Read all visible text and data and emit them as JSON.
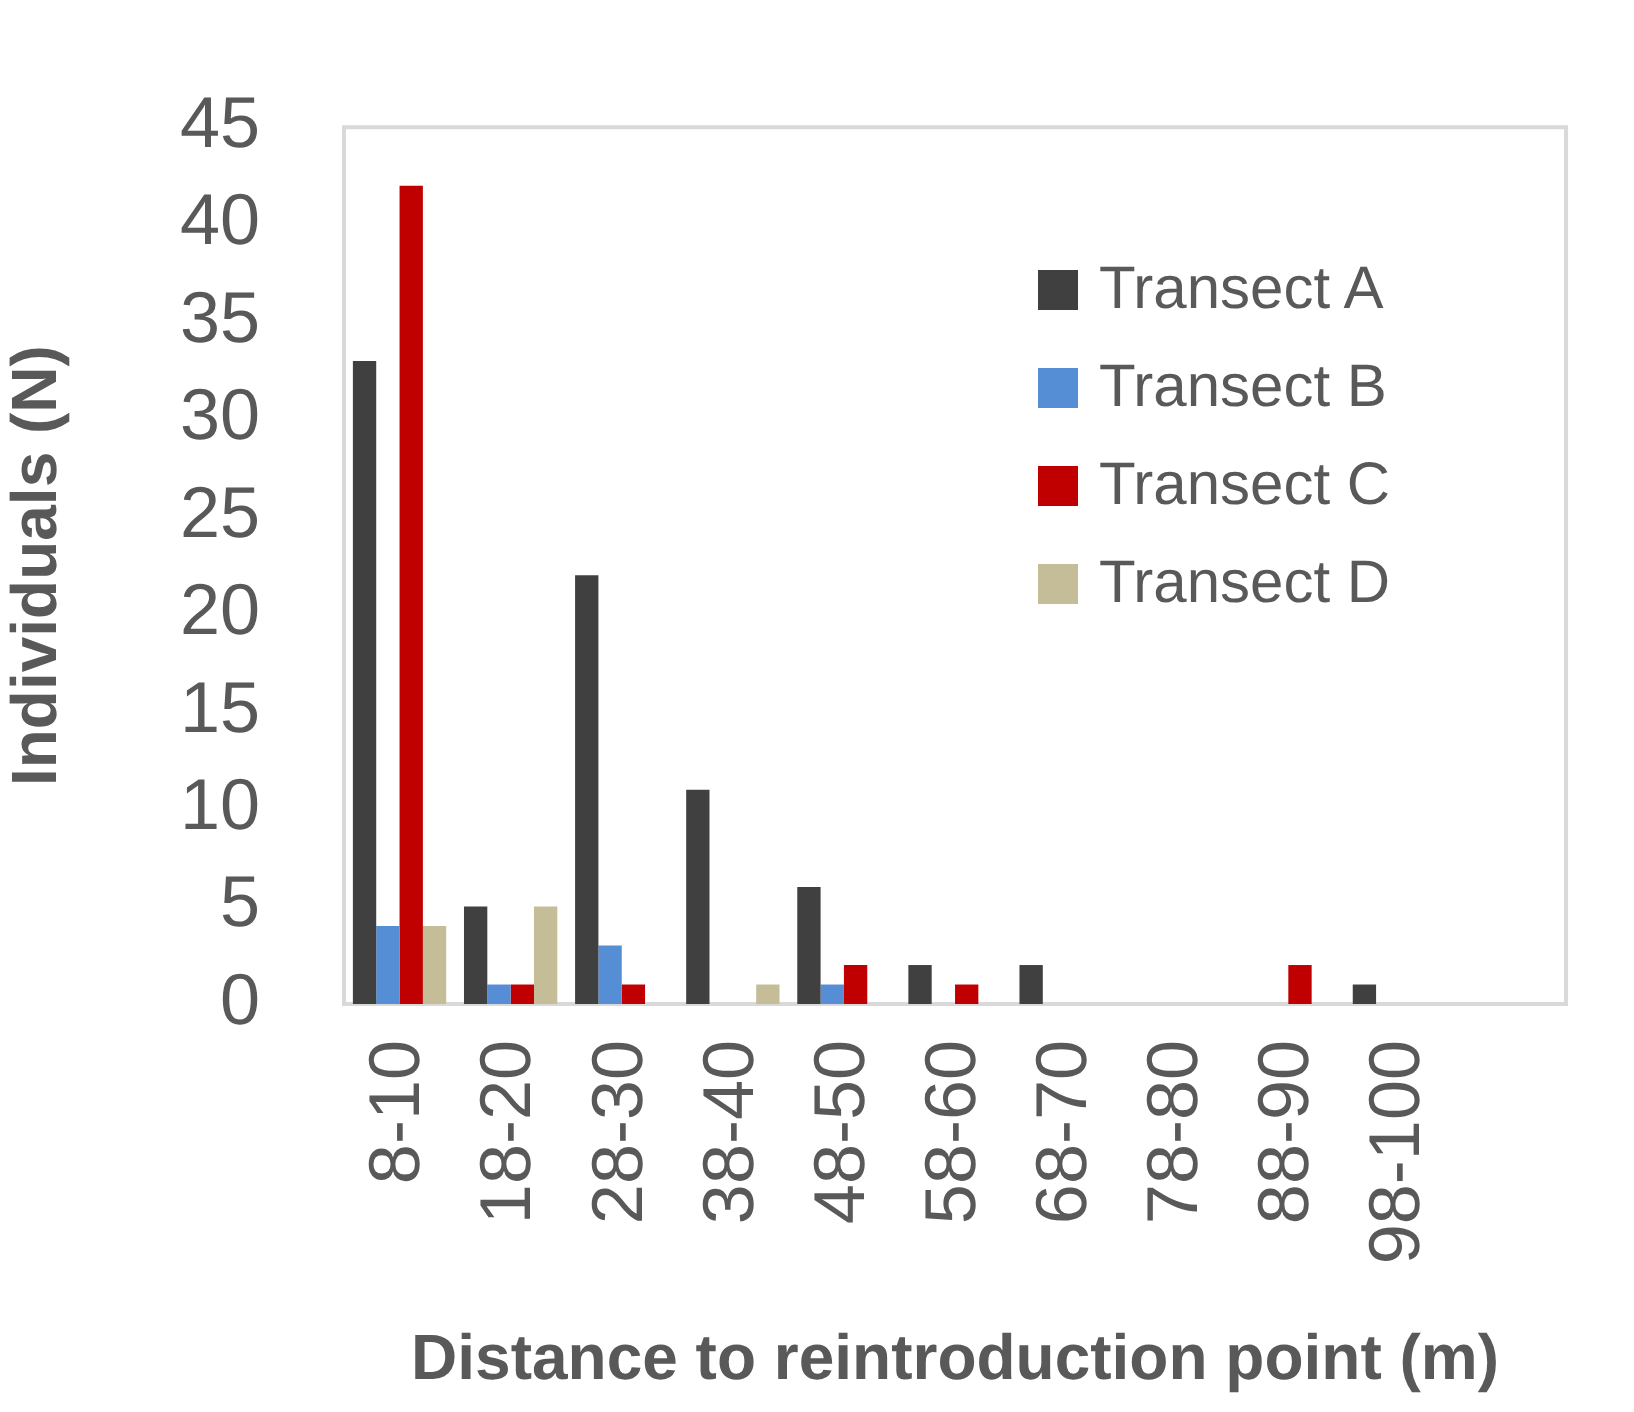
{
  "chart_data": {
    "type": "bar",
    "xlabel": "Distance to reintroduction point (m)",
    "ylabel": "Individuals (N)",
    "categories": [
      "8-10",
      "18-20",
      "28-30",
      "38-40",
      "48-50",
      "58-60",
      "68-70",
      "78-80",
      "88-90",
      "98-100",
      null
    ],
    "series": [
      {
        "name": "Transect A",
        "color": "#404040",
        "values": [
          33,
          5,
          22,
          11,
          6,
          2,
          2,
          0,
          0,
          1,
          null
        ]
      },
      {
        "name": "Transect B",
        "color": "#558ed5",
        "values": [
          4,
          1,
          3,
          0,
          1,
          0,
          0,
          0,
          0,
          0,
          null
        ]
      },
      {
        "name": "Transect C",
        "color": "#c00000",
        "values": [
          42,
          1,
          1,
          0,
          2,
          1,
          0,
          0,
          2,
          0,
          null
        ]
      },
      {
        "name": "Transect D",
        "color": "#c4bd97",
        "values": [
          4,
          5,
          0,
          1,
          0,
          0,
          0,
          0,
          0,
          0,
          null
        ]
      }
    ],
    "ylim": [
      0,
      45
    ],
    "yticks": [
      0,
      5,
      10,
      15,
      20,
      25,
      30,
      35,
      40,
      45
    ],
    "grid": false,
    "legend": "top right"
  }
}
